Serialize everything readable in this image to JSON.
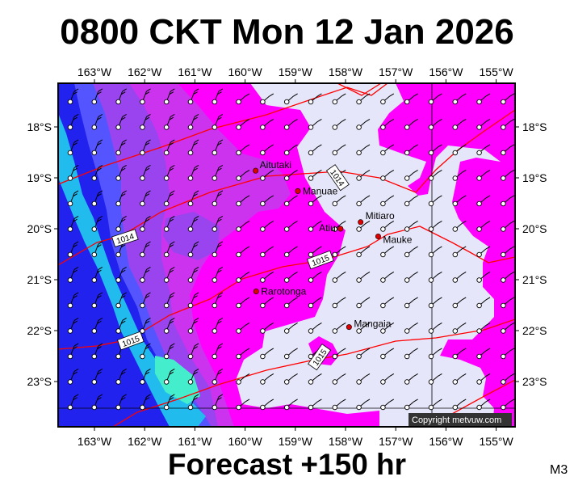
{
  "title": "0800 CKT Mon 12 Jan 2026",
  "footer": "Forecast +150 hr",
  "model_code": "M3",
  "copyright": "Copyright metvuw.com",
  "lon_labels": [
    "163°W",
    "162°W",
    "161°W",
    "160°W",
    "159°W",
    "158°W",
    "157°W",
    "156°W",
    "155°W"
  ],
  "lat_labels": [
    "18°S",
    "19°S",
    "20°S",
    "21°S",
    "22°S",
    "23°S"
  ],
  "places": [
    {
      "name": "Aitutaki",
      "lon": -159.79,
      "lat": -18.86
    },
    {
      "name": "Manuae",
      "lon": -158.95,
      "lat": -19.26
    },
    {
      "name": "Atiu",
      "lon": -158.1,
      "lat": -20.0
    },
    {
      "name": "Mitiaro",
      "lon": -157.7,
      "lat": -19.87
    },
    {
      "name": "Mauke",
      "lon": -157.35,
      "lat": -20.15
    },
    {
      "name": "Rarotonga",
      "lon": -159.78,
      "lat": -21.23
    },
    {
      "name": "Mangaia",
      "lon": -157.93,
      "lat": -21.93
    }
  ],
  "isobar_labels": [
    "1014",
    "1014",
    "1015",
    "1015",
    "1015"
  ],
  "colors": {
    "calm": "#e6e6fa",
    "magenta": "#ff00ff",
    "violet": "#cc33ee",
    "purple": "#9944ee",
    "blue": "#5555ff",
    "deep_blue": "#2222ee",
    "cyan": "#22bbee",
    "aqua": "#44eecc",
    "isobar": "#ff0000",
    "place_dot": "#dd0000"
  }
}
